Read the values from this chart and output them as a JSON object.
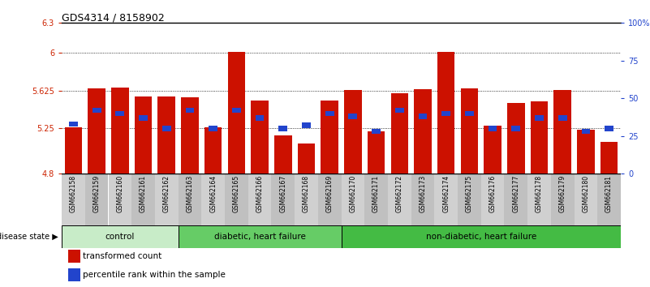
{
  "title": "GDS4314 / 8158902",
  "samples": [
    "GSM662158",
    "GSM662159",
    "GSM662160",
    "GSM662161",
    "GSM662162",
    "GSM662163",
    "GSM662164",
    "GSM662165",
    "GSM662166",
    "GSM662167",
    "GSM662168",
    "GSM662169",
    "GSM662170",
    "GSM662171",
    "GSM662172",
    "GSM662173",
    "GSM662174",
    "GSM662175",
    "GSM662176",
    "GSM662177",
    "GSM662178",
    "GSM662179",
    "GSM662180",
    "GSM662181"
  ],
  "red_values": [
    5.26,
    5.65,
    5.66,
    5.57,
    5.57,
    5.56,
    5.26,
    6.01,
    5.53,
    5.18,
    5.1,
    5.53,
    5.63,
    5.22,
    5.6,
    5.64,
    6.01,
    5.65,
    5.28,
    5.5,
    5.52,
    5.63,
    5.24,
    5.12
  ],
  "blue_values_pct": [
    33,
    42,
    40,
    37,
    30,
    42,
    30,
    42,
    37,
    30,
    32,
    40,
    38,
    28,
    42,
    38,
    40,
    40,
    30,
    30,
    37,
    37,
    28,
    30
  ],
  "groups": [
    {
      "label": "control",
      "start": 0,
      "end": 5,
      "color": "#c8ecc8"
    },
    {
      "label": "diabetic, heart failure",
      "start": 5,
      "end": 12,
      "color": "#66cc66"
    },
    {
      "label": "non-diabetic, heart failure",
      "start": 12,
      "end": 24,
      "color": "#44bb44"
    }
  ],
  "ymin": 4.8,
  "ymax": 6.3,
  "yticks": [
    4.8,
    5.25,
    5.625,
    6.0,
    6.3
  ],
  "ytick_labels": [
    "4.8",
    "5.25",
    "5.625",
    "6",
    "6.3"
  ],
  "right_yticks_pct": [
    0,
    25,
    50,
    75,
    100
  ],
  "right_ytick_labels": [
    "0",
    "25",
    "50",
    "75",
    "100%"
  ],
  "bar_color": "#cc1100",
  "blue_color": "#2244cc",
  "tick_label_color_left": "#cc2200",
  "tick_label_color_right": "#2244cc",
  "xtick_bg_odd": "#d0d0d0",
  "xtick_bg_even": "#c0c0c0"
}
